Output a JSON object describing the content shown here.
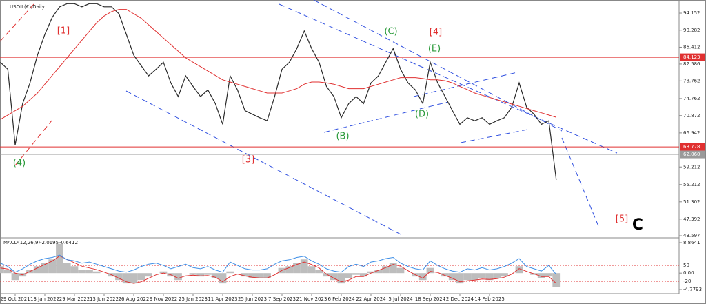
{
  "chart_data": [
    {
      "type": "line",
      "title": "USOIL(€),Daily",
      "categories": [
        null,
        null,
        "29 Oct 2021",
        null,
        null,
        null,
        "13 Jan 2022",
        null,
        null,
        null,
        "29 Mar 2022",
        null,
        null,
        null,
        "13 Jun 2022",
        null,
        null,
        null,
        "26 Aug 2022",
        null,
        null,
        null,
        "9 Nov 2022",
        null,
        null,
        null,
        "25 Jan 2023",
        null,
        null,
        null,
        "11 Apr 2023",
        null,
        null,
        null,
        "25 Jun 2023",
        null,
        null,
        null,
        "7 Sep 2023",
        null,
        null,
        null,
        "21 Nov 2023",
        null,
        null,
        null,
        "6 Feb 2024",
        null,
        null,
        null,
        "22 Apr 2024",
        null,
        null,
        null,
        "5 Jul 2024",
        null,
        null,
        null,
        "18 Sep 2024",
        null,
        null,
        null,
        "2 Dec 2024",
        null,
        null,
        null,
        "14 Feb 2025",
        null,
        null,
        null,
        null,
        null,
        null,
        null,
        null,
        null
      ],
      "series": [
        {
          "color": "#2a2a2a",
          "values": [
            83,
            81.4,
            64.2,
            73.6,
            78.3,
            84.6,
            89.3,
            93.2,
            95.6,
            96.3,
            96.3,
            95.6,
            96.3,
            96.3,
            95.6,
            95.6,
            94,
            89.3,
            84.6,
            82.2,
            79.9,
            81.4,
            83,
            78.3,
            75.2,
            79.9,
            77.5,
            75.2,
            76.7,
            73.6,
            68.9,
            79.9,
            76.7,
            72,
            71.2,
            70.4,
            69.7,
            75.2,
            81.4,
            83,
            86.1,
            90.1,
            86.1,
            83,
            77.5,
            75.2,
            70.4,
            73.6,
            75.2,
            73.6,
            78.3,
            79.9,
            83,
            86.1,
            81.4,
            78.3,
            76.7,
            73.6,
            83,
            78.3,
            75.2,
            72,
            68.9,
            70.4,
            69.7,
            70.4,
            68.9,
            69.7,
            70.4,
            72.8,
            78.3,
            72.8,
            71.2,
            68.9,
            69.7,
            56.3
          ]
        },
        {
          "color": "#e03030",
          "values": [
            70,
            71,
            72,
            73,
            74.5,
            76,
            78,
            80,
            82,
            84,
            86,
            88,
            90,
            92,
            93.5,
            94.5,
            95,
            95,
            94,
            93,
            91.5,
            90,
            88.5,
            87,
            85.5,
            84,
            83,
            82,
            81,
            80,
            79,
            78.5,
            78,
            77.5,
            77,
            76.5,
            76,
            76,
            76,
            76.5,
            77,
            78,
            78.5,
            78.5,
            78.3,
            78,
            77.5,
            77,
            77,
            77,
            77.5,
            78,
            78.5,
            79,
            79.5,
            79.5,
            79.5,
            79.3,
            79,
            79,
            78.8,
            78.3,
            77.5,
            76.8,
            76,
            75.5,
            75,
            74.5,
            74,
            73.5,
            73,
            72.5,
            72,
            71.5,
            71,
            70.5
          ]
        }
      ],
      "ylim": [
        43.13,
        97.13
      ],
      "yticks": [
        94.152,
        90.282,
        86.412,
        82.586,
        78.762,
        74.762,
        70.872,
        66.942,
        59.212,
        55.212,
        51.302,
        47.392,
        43.597
      ],
      "levels": [
        {
          "value": 84.123,
          "color": "#e03030"
        },
        {
          "value": 63.778,
          "color": "#e03030"
        },
        {
          "value": {
            "value": 62.06,
            "label": "62.060"
          },
          "color": "#9a9a9a"
        }
      ],
      "annotations": [
        {
          "text": "[1]",
          "color": "#e03030"
        },
        {
          "text": "(4)",
          "color": "#2a9a3a"
        },
        {
          "text": "[3]",
          "color": "#e03030"
        },
        {
          "text": "(B)",
          "color": "#2a9a3a"
        },
        {
          "text": "(C)",
          "color": "#2a9a3a"
        },
        {
          "text": "[4]",
          "color": "#e03030"
        },
        {
          "text": "(E)",
          "color": "#2a9a3a"
        },
        {
          "text": "(D)",
          "color": "#2a9a3a"
        },
        {
          "text": "[5]",
          "color": "#e03030"
        },
        {
          "text": "C",
          "color": "#000000"
        }
      ]
    },
    {
      "type": "macd",
      "title": "MACD(12,26,9)",
      "readings": [
        -2.0195,
        -0.6412
      ],
      "series": [
        {
          "type": "bar",
          "color": "#bdbdbd",
          "values": [
            2,
            1,
            -2,
            -1,
            1,
            2,
            3,
            4,
            8.5,
            3,
            2,
            1,
            1,
            0.5,
            0,
            -1,
            -2,
            -3,
            -3,
            -2,
            -1,
            0,
            0.5,
            -1,
            -2,
            0,
            -0.5,
            -1,
            -0.5,
            -1.5,
            -3,
            0.5,
            0,
            -1,
            -1.5,
            -1.5,
            -1.5,
            0,
            1.5,
            2,
            3,
            4,
            2,
            1,
            -1,
            -2,
            -3,
            -1.5,
            -0.5,
            -1,
            0.5,
            1,
            2,
            3,
            1.5,
            0,
            -1,
            -2,
            1.5,
            0,
            -1,
            -2,
            -3,
            -2,
            -2,
            -1.5,
            -2,
            -1.5,
            -1,
            0,
            2,
            0,
            -0.5,
            -1.5,
            -1,
            -4
          ]
        },
        {
          "type": "line",
          "color": "#e03030",
          "values": [
            1.5,
            1.2,
            0,
            -0.5,
            0.5,
            1.5,
            2.5,
            3.5,
            5,
            4,
            3,
            2,
            1.5,
            1,
            0.3,
            -0.5,
            -1.5,
            -2.5,
            -3,
            -2.5,
            -1.5,
            -0.5,
            0,
            -0.5,
            -1.5,
            -0.8,
            -0.6,
            -0.8,
            -0.7,
            -1.2,
            -2.5,
            -1,
            -0.3,
            -0.8,
            -1.2,
            -1.4,
            -1.4,
            -0.5,
            0.8,
            1.6,
            2.5,
            3.2,
            2.5,
            1.5,
            -0.3,
            -1.5,
            -2.5,
            -2,
            -1,
            -1,
            0,
            0.8,
            1.6,
            2.5,
            2,
            0.7,
            -0.5,
            -1.5,
            0.5,
            0.2,
            -0.7,
            -1.5,
            -2.5,
            -2.2,
            -2,
            -1.7,
            -1.8,
            -1.6,
            -1.2,
            -0.3,
            1.3,
            0.5,
            -0.2,
            -1,
            -1,
            -3
          ]
        },
        {
          "type": "line",
          "axis": "y2",
          "color": "#3d8ee6",
          "values": [
            60,
            45,
            20,
            35,
            55,
            70,
            80,
            85,
            95,
            75,
            70,
            60,
            65,
            55,
            45,
            35,
            25,
            20,
            30,
            45,
            55,
            60,
            50,
            35,
            45,
            55,
            40,
            35,
            45,
            30,
            20,
            65,
            50,
            35,
            30,
            30,
            35,
            55,
            70,
            75,
            85,
            90,
            70,
            55,
            35,
            25,
            20,
            45,
            55,
            45,
            65,
            70,
            80,
            85,
            60,
            45,
            35,
            30,
            70,
            50,
            35,
            25,
            20,
            35,
            30,
            40,
            30,
            35,
            45,
            60,
            80,
            45,
            35,
            25,
            50,
            10
          ]
        }
      ],
      "ylim": [
        -5.98,
        10.27
      ],
      "yticks": [
        8.8641,
        {
          "value": 0,
          "label": "0.00"
        },
        -4.7793
      ],
      "y2lim": [
        -74.8,
        171.7
      ],
      "y2ticks": [
        50,
        -20
      ]
    }
  ]
}
